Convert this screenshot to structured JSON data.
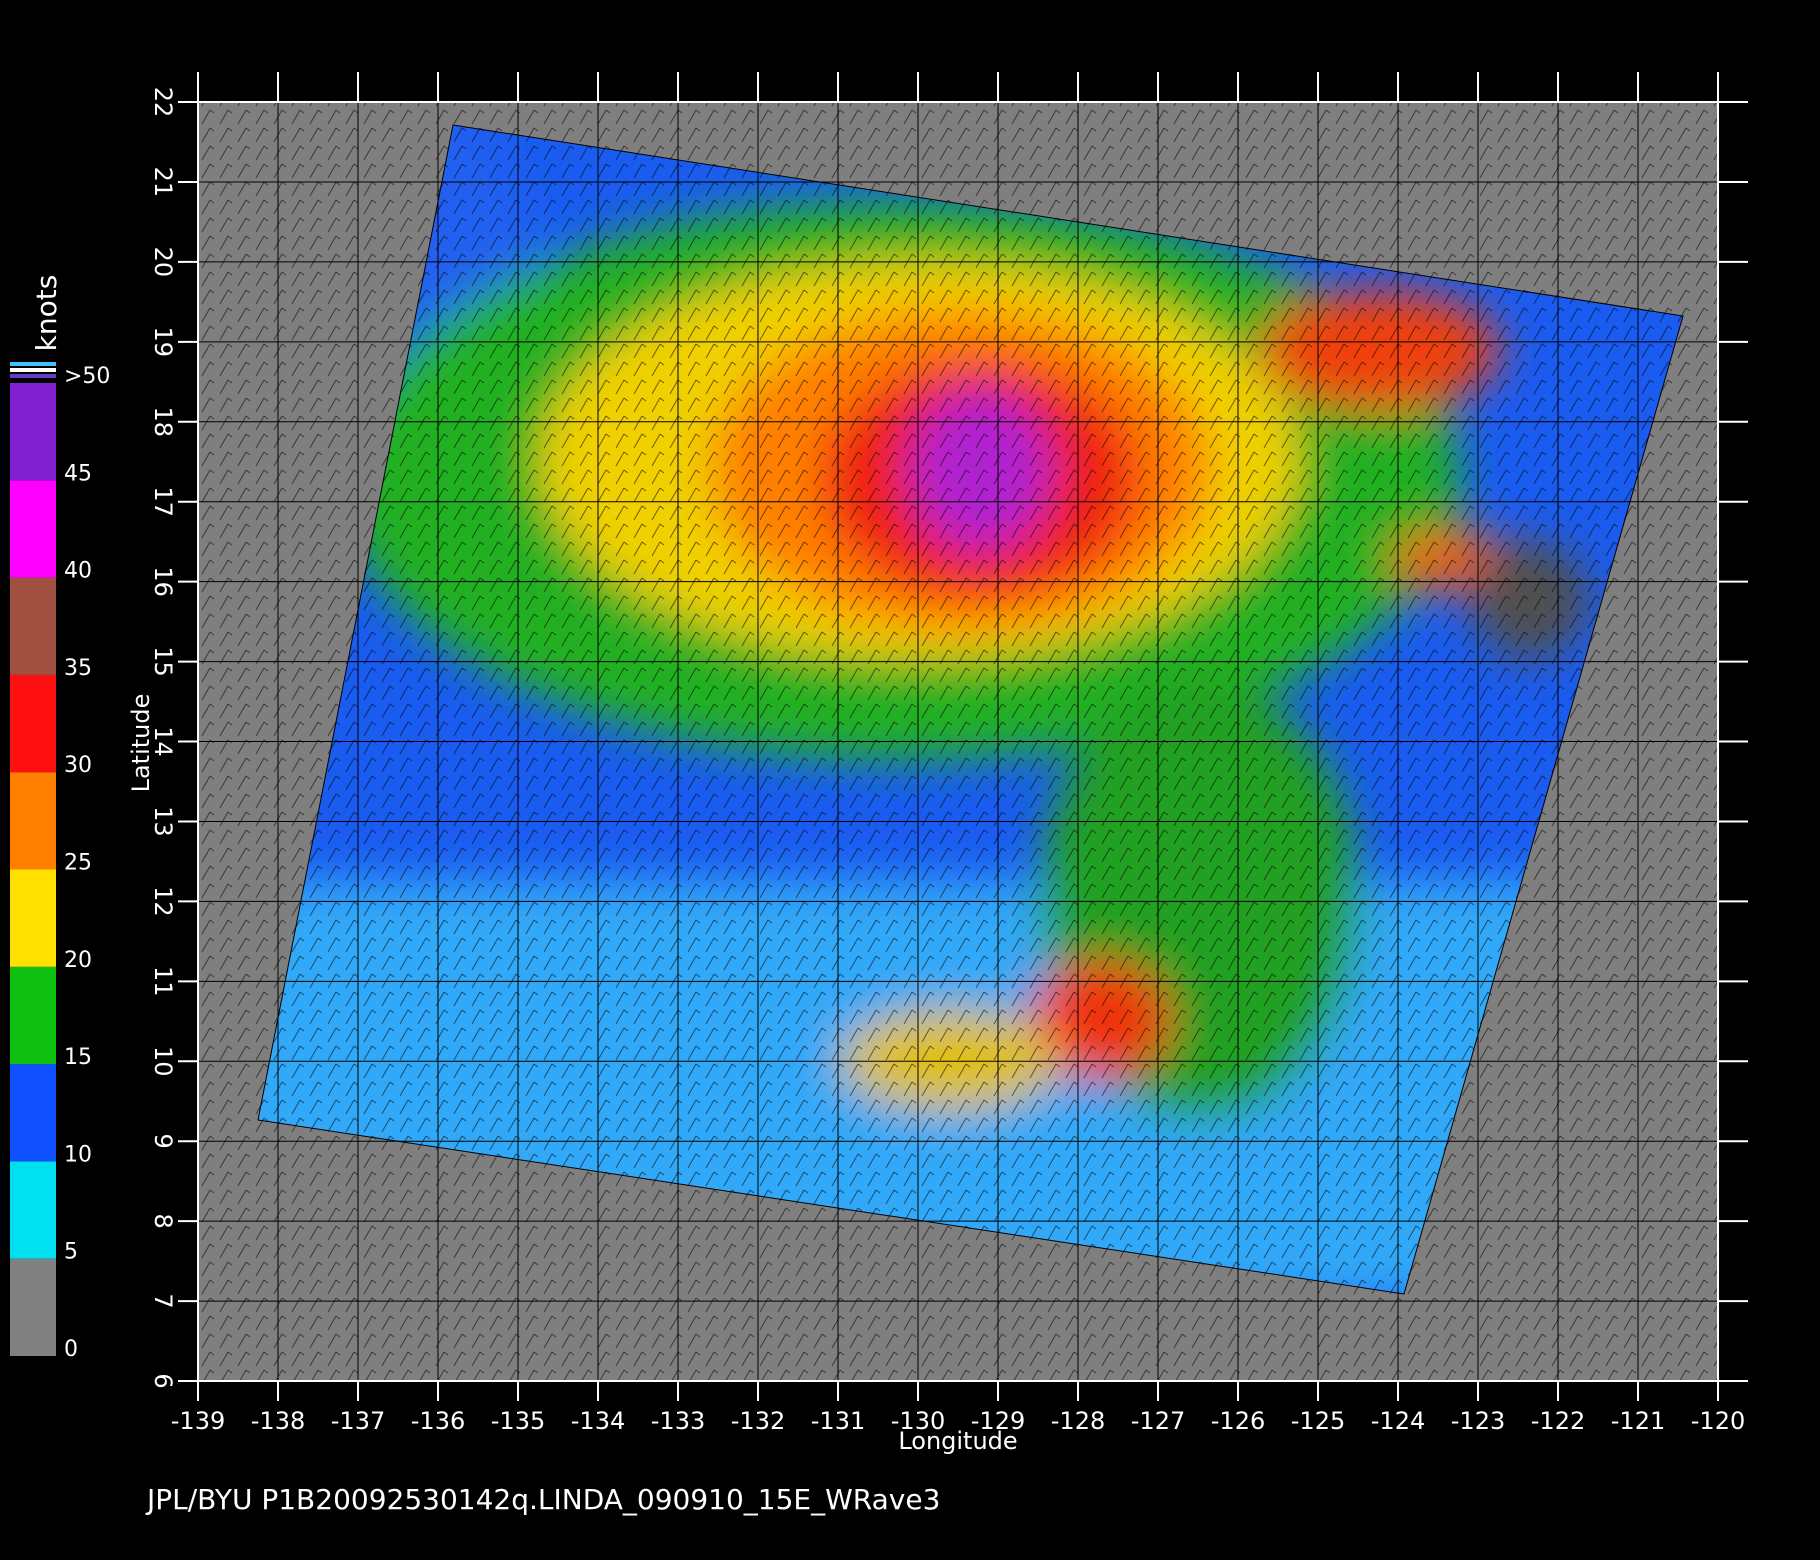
{
  "chart_data": {
    "type": "map",
    "xlabel": "Longitude",
    "ylabel": "Latitude",
    "xlim": [
      -139,
      -120
    ],
    "ylim": [
      6,
      22
    ],
    "xticks": [
      -139,
      -138,
      -137,
      -136,
      -135,
      -134,
      -133,
      -132,
      -131,
      -130,
      -129,
      -128,
      -127,
      -126,
      -125,
      -124,
      -123,
      -122,
      -121,
      -120
    ],
    "yticks": [
      6,
      7,
      8,
      9,
      10,
      11,
      12,
      13,
      14,
      15,
      16,
      17,
      18,
      19,
      20,
      21,
      22
    ],
    "grid": true,
    "colorbar": {
      "label": "knots",
      "lim": [
        0,
        50
      ],
      "ticks": [
        0,
        5,
        10,
        15,
        20,
        25,
        30,
        35,
        40,
        45,
        {
          "value": 50,
          "label": ">50"
        }
      ],
      "colors": [
        "#808080",
        "#00e0f0",
        "#1050ff",
        "#10c010",
        "#ffe000",
        "#ff8000",
        "#ff1010",
        "#a05040",
        "#ff00ff",
        "#8020d0"
      ]
    },
    "footer": "JPL/BYU  P1B20092530142q.LINDA_090910_15E_WRave3"
  }
}
